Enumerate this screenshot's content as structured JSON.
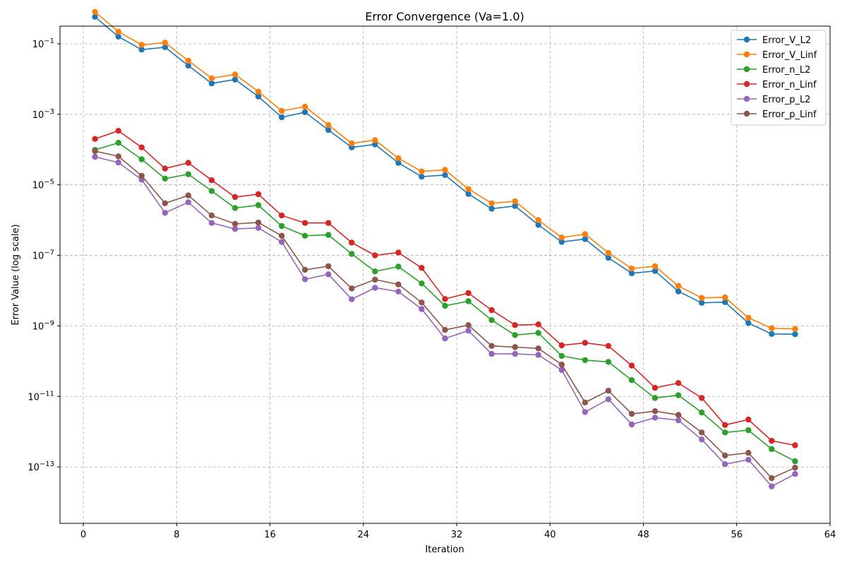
{
  "chart_data": {
    "type": "line",
    "title": "Error Convergence (Va=1.0)",
    "xlabel": "Iteration",
    "ylabel": "Error Value (log scale)",
    "yscale": "log",
    "xlim": [
      -2,
      64
    ],
    "ylim_exponent": [
      -14.6,
      -0.5
    ],
    "xticks": [
      0,
      8,
      16,
      24,
      32,
      40,
      48,
      56,
      64
    ],
    "yticks": [
      {
        "exp": -1,
        "base": "10",
        "power": "−1"
      },
      {
        "exp": -3,
        "base": "10",
        "power": "−3"
      },
      {
        "exp": -5,
        "base": "10",
        "power": "−5"
      },
      {
        "exp": -7,
        "base": "10",
        "power": "−7"
      },
      {
        "exp": -9,
        "base": "10",
        "power": "−9"
      },
      {
        "exp": -11,
        "base": "10",
        "power": "−11"
      },
      {
        "exp": -13,
        "base": "10",
        "power": "−13"
      }
    ],
    "grid": true,
    "legend_position": "top-right",
    "x": [
      1,
      3,
      5,
      7,
      9,
      11,
      13,
      15,
      17,
      19,
      21,
      23,
      25,
      27,
      29,
      31,
      33,
      35,
      37,
      39,
      41,
      43,
      45,
      47,
      49,
      51,
      53,
      55,
      57,
      59,
      61
    ],
    "series": [
      {
        "name": "Error_V_L2",
        "color": "#1f77b4",
        "values": [
          0.58,
          0.16,
          0.068,
          0.08,
          0.024,
          0.0075,
          0.0097,
          0.0032,
          0.00082,
          0.00115,
          0.00036,
          0.000115,
          0.00014,
          4.2e-05,
          1.7e-05,
          1.9e-05,
          5.5e-06,
          2.1e-06,
          2.5e-06,
          7.3e-07,
          2.4e-07,
          2.9e-07,
          8.5e-08,
          3.1e-08,
          3.6e-08,
          9.5e-09,
          4.5e-09,
          4.7e-09,
          1.2e-09,
          5.9e-10,
          5.8e-10
        ]
      },
      {
        "name": "Error_V_Linf",
        "color": "#ff7f0e",
        "values": [
          0.8,
          0.22,
          0.093,
          0.108,
          0.033,
          0.0105,
          0.0135,
          0.0044,
          0.00125,
          0.00165,
          0.0005,
          0.00015,
          0.000185,
          5.7e-05,
          2.4e-05,
          2.65e-05,
          7.6e-06,
          3e-06,
          3.4e-06,
          1e-06,
          3.2e-07,
          4e-07,
          1.18e-07,
          4.2e-08,
          4.9e-08,
          1.35e-08,
          6.2e-09,
          6.4e-09,
          1.7e-09,
          8.6e-10,
          8.2e-10
        ]
      },
      {
        "name": "Error_n_L2",
        "color": "#2ca02c",
        "values": [
          9.8e-05,
          0.000155,
          5.3e-05,
          1.5e-05,
          2e-05,
          6.7e-06,
          2.2e-06,
          2.65e-06,
          6.8e-07,
          3.6e-07,
          3.8e-07,
          1.1e-07,
          3.5e-08,
          4.8e-08,
          1.6e-08,
          3.7e-09,
          5e-09,
          1.45e-09,
          5.5e-10,
          6.3e-10,
          1.4e-10,
          1.07e-10,
          9.5e-11,
          2.9e-11,
          9e-12,
          1.08e-11,
          3.5e-12,
          9.5e-13,
          1.1e-12,
          3.2e-13,
          1.45e-13
        ]
      },
      {
        "name": "Error_n_Linf",
        "color": "#d62728",
        "values": [
          0.0002,
          0.00034,
          0.000115,
          2.9e-05,
          4.2e-05,
          1.35e-05,
          4.5e-06,
          5.4e-06,
          1.35e-06,
          8.3e-07,
          8.3e-07,
          2.3e-07,
          1e-07,
          1.2e-07,
          4.4e-08,
          5.8e-09,
          8.5e-09,
          2.8e-09,
          1.05e-09,
          1.1e-09,
          2.8e-10,
          3.3e-10,
          2.7e-10,
          7.5e-11,
          1.75e-11,
          2.4e-11,
          9e-12,
          1.55e-12,
          2.2e-12,
          5.5e-13,
          4.1e-13
        ]
      },
      {
        "name": "Error_p_L2",
        "color": "#9467bd",
        "values": [
          6.2e-05,
          4.3e-05,
          1.4e-05,
          1.6e-06,
          3.2e-06,
          8.3e-07,
          5.6e-07,
          6e-07,
          2.4e-07,
          2.1e-08,
          2.9e-08,
          5.7e-09,
          1.2e-08,
          9.4e-09,
          3e-09,
          4.4e-10,
          7.3e-10,
          1.6e-10,
          1.6e-10,
          1.5e-10,
          5.6e-11,
          3.6e-12,
          8.3e-12,
          1.6e-12,
          2.5e-12,
          2.1e-12,
          6e-13,
          1.2e-13,
          1.6e-13,
          2.8e-14,
          6.3e-14
        ]
      },
      {
        "name": "Error_p_Linf",
        "color": "#8c564b",
        "values": [
          9e-05,
          6.4e-05,
          1.8e-05,
          3e-06,
          5e-06,
          1.35e-06,
          7.8e-07,
          8.5e-07,
          3.6e-07,
          3.9e-08,
          4.9e-08,
          1.15e-08,
          2.05e-08,
          1.5e-08,
          4.6e-09,
          7.7e-10,
          1.05e-09,
          2.7e-10,
          2.5e-10,
          2.3e-10,
          8e-11,
          6.7e-12,
          1.45e-11,
          3.2e-12,
          3.8e-12,
          3e-12,
          9.5e-13,
          2.1e-13,
          2.5e-13,
          4.8e-14,
          9.5e-14
        ]
      }
    ]
  }
}
